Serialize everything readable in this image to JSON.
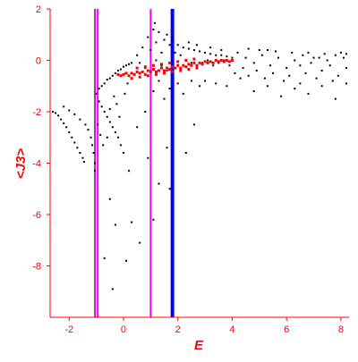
{
  "chart_data": {
    "type": "scatter",
    "title": "",
    "xlabel": "E",
    "ylabel": "<J3>",
    "xlim": [
      -2.7,
      8.3
    ],
    "ylim": [
      -10,
      2
    ],
    "xticks": [
      -2,
      0,
      2,
      4,
      6,
      8
    ],
    "yticks": [
      2,
      0,
      -2,
      -4,
      -6,
      -8
    ],
    "xtick_labels": [
      "-2",
      "0",
      "2",
      "4",
      "6",
      "8"
    ],
    "ytick_labels": [
      "2",
      "0",
      "-2",
      "-4",
      "-6",
      "-8"
    ],
    "grid": false,
    "colors": {
      "axis": "#ff0000",
      "points_black": "#000000",
      "points_red": "#ff0000",
      "line_purple": "#993399",
      "line_magenta": "#ff00ff",
      "line_blue": "#0000ff"
    },
    "vertical_lines": [
      {
        "x": -1.05,
        "color": "#993399",
        "stroke": "thin"
      },
      {
        "x": -0.95,
        "color": "#ff00ff",
        "stroke": "thin"
      },
      {
        "x": 1.0,
        "color": "#ff00ff",
        "stroke": "thin"
      },
      {
        "x": 1.8,
        "color": "#0000ff",
        "stroke": "thick"
      }
    ],
    "series": [
      {
        "color": "#000000",
        "description_points": [
          [
            -2.6,
            -2.0
          ],
          [
            -2.5,
            -2.05
          ],
          [
            -2.4,
            -2.15
          ],
          [
            -2.3,
            -2.3
          ],
          [
            -2.2,
            -2.45
          ],
          [
            -2.1,
            -2.6
          ],
          [
            -2.0,
            -2.8
          ],
          [
            -1.9,
            -3.0
          ],
          [
            -1.8,
            -3.2
          ],
          [
            -1.7,
            -3.4
          ],
          [
            -1.6,
            -3.6
          ],
          [
            -1.5,
            -3.8
          ],
          [
            -1.45,
            -3.95
          ],
          [
            -2.2,
            -1.8
          ],
          [
            -2.0,
            -1.95
          ],
          [
            -1.8,
            -2.1
          ],
          [
            -1.6,
            -2.3
          ],
          [
            -1.4,
            -2.5
          ],
          [
            -1.3,
            -2.7
          ],
          [
            -1.2,
            -3.0
          ],
          [
            -1.15,
            -3.3
          ],
          [
            -1.1,
            -3.6
          ],
          [
            -1.05,
            -4.0
          ],
          [
            -1.05,
            -4.3
          ],
          [
            -1.0,
            -1.3
          ],
          [
            -0.9,
            -1.1
          ],
          [
            -0.8,
            -1.0
          ],
          [
            -0.7,
            -0.9
          ],
          [
            -0.6,
            -0.75
          ],
          [
            -0.5,
            -0.7
          ],
          [
            -0.4,
            -0.6
          ],
          [
            -0.3,
            -0.5
          ],
          [
            -0.2,
            -0.4
          ],
          [
            -0.1,
            -0.35
          ],
          [
            0.0,
            -0.25
          ],
          [
            0.1,
            -0.2
          ],
          [
            0.2,
            -0.15
          ],
          [
            0.3,
            -0.1
          ],
          [
            -0.9,
            -1.6
          ],
          [
            -0.8,
            -1.8
          ],
          [
            -0.7,
            -2.0
          ],
          [
            -0.6,
            -2.2
          ],
          [
            -0.5,
            -2.4
          ],
          [
            -0.4,
            -2.6
          ],
          [
            -0.3,
            -2.8
          ],
          [
            -0.2,
            -3.0
          ],
          [
            -0.1,
            -3.3
          ],
          [
            0.0,
            -3.6
          ],
          [
            -0.95,
            -2.5
          ],
          [
            -0.85,
            -2.9
          ],
          [
            -0.75,
            -3.3
          ],
          [
            -0.6,
            -3.0
          ],
          [
            -0.5,
            -1.9
          ],
          [
            -0.35,
            -1.4
          ],
          [
            -0.25,
            -1.7
          ],
          [
            -0.15,
            -2.2
          ],
          [
            0.05,
            -1.3
          ],
          [
            0.15,
            -0.9
          ],
          [
            -0.5,
            -5.4
          ],
          [
            -0.3,
            -6.4
          ],
          [
            -0.7,
            -7.7
          ],
          [
            -0.4,
            -8.9
          ],
          [
            0.3,
            -6.3
          ],
          [
            0.6,
            -7.1
          ],
          [
            0.1,
            -7.8
          ],
          [
            0.9,
            -3.8
          ],
          [
            1.1,
            -6.2
          ],
          [
            1.3,
            -4.8
          ],
          [
            1.6,
            -3.4
          ],
          [
            1.7,
            -5.0
          ],
          [
            2.3,
            -3.6
          ],
          [
            2.6,
            -2.5
          ],
          [
            0.2,
            -4.3
          ],
          [
            0.5,
            -2.6
          ],
          [
            0.8,
            -2.0
          ],
          [
            0.5,
            0.2
          ],
          [
            0.6,
            -0.1
          ],
          [
            0.7,
            0.5
          ],
          [
            0.8,
            -0.3
          ],
          [
            0.9,
            0.9
          ],
          [
            1.0,
            0.4
          ],
          [
            1.1,
            1.2
          ],
          [
            1.15,
            1.45
          ],
          [
            1.2,
            0.7
          ],
          [
            1.3,
            1.1
          ],
          [
            1.4,
            0.3
          ],
          [
            1.5,
            0.8
          ],
          [
            1.6,
            1.0
          ],
          [
            1.7,
            0.6
          ],
          [
            1.8,
            0.9
          ],
          [
            1.1,
            -1.2
          ],
          [
            1.3,
            -0.8
          ],
          [
            1.5,
            -1.5
          ],
          [
            1.7,
            -1.1
          ],
          [
            2.0,
            -0.9
          ],
          [
            2.2,
            -1.3
          ],
          [
            2.5,
            -0.8
          ],
          [
            2.8,
            -1.0
          ],
          [
            2.0,
            0.6
          ],
          [
            2.2,
            0.5
          ],
          [
            2.4,
            0.45
          ],
          [
            2.6,
            0.4
          ],
          [
            2.8,
            0.35
          ],
          [
            3.0,
            0.3
          ],
          [
            3.2,
            0.25
          ],
          [
            3.4,
            0.2
          ],
          [
            3.6,
            0.2
          ],
          [
            3.8,
            0.15
          ],
          [
            4.0,
            0.1
          ],
          [
            2.1,
            0.2
          ],
          [
            2.3,
            0.0
          ],
          [
            2.5,
            -0.1
          ],
          [
            2.7,
            -0.2
          ],
          [
            2.9,
            -0.1
          ],
          [
            3.1,
            0.0
          ],
          [
            3.3,
            -0.2
          ],
          [
            3.5,
            -0.1
          ],
          [
            3.7,
            0.0
          ],
          [
            3.9,
            -0.2
          ],
          [
            3.0,
            -0.8
          ],
          [
            3.4,
            -0.9
          ],
          [
            3.8,
            -1.0
          ],
          [
            4.3,
            -0.7
          ],
          [
            4.8,
            -1.2
          ],
          [
            5.3,
            -1.0
          ],
          [
            5.8,
            -1.4
          ],
          [
            6.3,
            -1.1
          ],
          [
            6.8,
            -1.3
          ],
          [
            7.3,
            -1.0
          ],
          [
            7.8,
            -1.5
          ],
          [
            8.2,
            -0.9
          ],
          [
            4.2,
            0.3
          ],
          [
            4.5,
            0.1
          ],
          [
            4.8,
            -0.1
          ],
          [
            5.1,
            0.2
          ],
          [
            5.4,
            -0.2
          ],
          [
            5.7,
            0.1
          ],
          [
            6.0,
            -0.3
          ],
          [
            6.3,
            0.0
          ],
          [
            6.6,
            0.2
          ],
          [
            6.9,
            -0.1
          ],
          [
            7.2,
            0.1
          ],
          [
            7.5,
            0.0
          ],
          [
            7.8,
            0.2
          ],
          [
            8.1,
            0.1
          ],
          [
            4.4,
            -0.3
          ],
          [
            4.9,
            -0.4
          ],
          [
            5.5,
            -0.5
          ],
          [
            6.1,
            -0.6
          ],
          [
            6.7,
            -0.5
          ],
          [
            7.3,
            -0.4
          ],
          [
            7.9,
            -0.6
          ],
          [
            8.2,
            -0.3
          ],
          [
            5.0,
            0.4
          ],
          [
            5.6,
            0.35
          ],
          [
            6.2,
            0.3
          ],
          [
            6.8,
            0.3
          ],
          [
            7.4,
            0.25
          ],
          [
            8.0,
            0.3
          ],
          [
            4.6,
            0.45
          ],
          [
            5.3,
            0.4
          ],
          [
            6.5,
            -0.2
          ],
          [
            7.0,
            0.1
          ],
          [
            7.6,
            -0.2
          ],
          [
            8.2,
            0.25
          ],
          [
            1.2,
            0.0
          ],
          [
            1.4,
            -0.2
          ],
          [
            1.6,
            -0.4
          ],
          [
            1.9,
            0.3
          ],
          [
            2.4,
            0.7
          ],
          [
            2.7,
            0.6
          ],
          [
            3.2,
            0.5
          ],
          [
            3.6,
            0.4
          ],
          [
            4.1,
            -0.5
          ],
          [
            4.6,
            -0.6
          ],
          [
            5.2,
            -0.7
          ],
          [
            5.9,
            -0.8
          ],
          [
            6.5,
            -0.9
          ],
          [
            7.1,
            -0.7
          ],
          [
            7.7,
            -0.8
          ]
        ]
      },
      {
        "color": "#ff0000",
        "description_points": [
          [
            -0.2,
            -0.55
          ],
          [
            -0.1,
            -0.6
          ],
          [
            0.0,
            -0.55
          ],
          [
            0.1,
            -0.5
          ],
          [
            0.2,
            -0.6
          ],
          [
            0.3,
            -0.5
          ],
          [
            0.4,
            -0.55
          ],
          [
            0.5,
            -0.45
          ],
          [
            0.6,
            -0.5
          ],
          [
            0.7,
            -0.45
          ],
          [
            0.8,
            -0.55
          ],
          [
            0.9,
            -0.4
          ],
          [
            1.0,
            -0.45
          ],
          [
            1.1,
            -0.35
          ],
          [
            1.2,
            -0.45
          ],
          [
            1.3,
            -0.4
          ],
          [
            1.4,
            -0.3
          ],
          [
            1.5,
            -0.4
          ],
          [
            1.6,
            -0.3
          ],
          [
            1.7,
            -0.35
          ],
          [
            1.8,
            -0.25
          ],
          [
            1.9,
            -0.3
          ],
          [
            2.0,
            -0.2
          ],
          [
            2.1,
            -0.3
          ],
          [
            2.2,
            -0.2
          ],
          [
            2.3,
            -0.25
          ],
          [
            2.4,
            -0.15
          ],
          [
            2.5,
            -0.2
          ],
          [
            2.6,
            -0.1
          ],
          [
            2.7,
            -0.2
          ],
          [
            2.8,
            -0.1
          ],
          [
            2.9,
            -0.15
          ],
          [
            3.0,
            -0.05
          ],
          [
            3.1,
            -0.1
          ],
          [
            3.2,
            -0.05
          ],
          [
            3.3,
            -0.1
          ],
          [
            3.4,
            0.0
          ],
          [
            3.5,
            -0.05
          ],
          [
            3.6,
            0.0
          ],
          [
            3.7,
            -0.05
          ],
          [
            3.8,
            0.0
          ],
          [
            3.9,
            -0.05
          ],
          [
            4.0,
            0.0
          ],
          [
            0.5,
            -0.3
          ],
          [
            0.8,
            -0.25
          ],
          [
            1.1,
            -0.2
          ],
          [
            1.4,
            -0.15
          ],
          [
            1.7,
            -0.1
          ],
          [
            2.0,
            -0.05
          ],
          [
            2.3,
            0.0
          ],
          [
            2.6,
            0.05
          ],
          [
            0.3,
            -0.7
          ],
          [
            0.6,
            -0.65
          ],
          [
            0.9,
            -0.6
          ],
          [
            1.2,
            -0.55
          ],
          [
            1.5,
            -0.5
          ],
          [
            1.8,
            -0.45
          ],
          [
            2.1,
            -0.4
          ],
          [
            2.4,
            -0.35
          ],
          [
            2.7,
            -0.3
          ]
        ]
      }
    ]
  }
}
